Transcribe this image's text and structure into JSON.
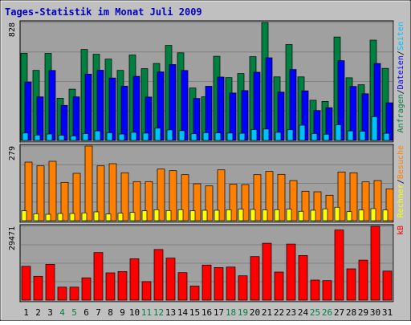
{
  "title": "Tages-Statistik im Monat Juli 2009",
  "colors": {
    "frame": "#c0c0c0",
    "panel": "#a0a0a0",
    "title": "#0000c0",
    "hits": "#008040",
    "files": "#0000ff",
    "pages": "#00c0ff",
    "visits": "#ff8000",
    "sites": "#ffff00",
    "kbytes": "#ff0000",
    "weekend": "#008040",
    "weekday": "#000000"
  },
  "chart_data": [
    {
      "type": "bar",
      "panel": "top",
      "ymax_label": "828",
      "legend": [
        "Anfragen",
        "Dateien",
        "Seiten"
      ],
      "legend_separator": "/",
      "categories": [
        "1",
        "2",
        "3",
        "4",
        "5",
        "6",
        "7",
        "8",
        "9",
        "10",
        "11",
        "12",
        "13",
        "14",
        "15",
        "16",
        "17",
        "18",
        "19",
        "20",
        "21",
        "22",
        "23",
        "24",
        "25",
        "26",
        "27",
        "28",
        "29",
        "30",
        "31"
      ],
      "weekend_days": [
        "4",
        "5",
        "11",
        "12",
        "18",
        "19",
        "25",
        "26"
      ],
      "ylim": [
        0,
        828
      ],
      "series": [
        {
          "name": "Anfragen",
          "color_key": "hits",
          "values": [
            612,
            492,
            611,
            296,
            360,
            639,
            605,
            571,
            492,
            600,
            504,
            540,
            667,
            615,
            368,
            306,
            591,
            441,
            470,
            588,
            828,
            446,
            673,
            446,
            282,
            274,
            726,
            440,
            391,
            704,
            506
          ]
        },
        {
          "name": "Dateien",
          "color_key": "files",
          "values": [
            410,
            306,
            491,
            246,
            306,
            465,
            493,
            438,
            381,
            450,
            305,
            481,
            533,
            491,
            295,
            380,
            445,
            333,
            350,
            479,
            580,
            339,
            498,
            348,
            210,
            230,
            560,
            379,
            328,
            540,
            264
          ]
        },
        {
          "name": "Seiten",
          "color_key": "pages",
          "values": [
            52,
            38,
            45,
            36,
            32,
            48,
            67,
            54,
            45,
            57,
            51,
            86,
            74,
            69,
            47,
            54,
            53,
            52,
            50,
            76,
            80,
            57,
            75,
            107,
            48,
            44,
            110,
            67,
            64,
            167,
            50
          ]
        }
      ]
    },
    {
      "type": "bar",
      "panel": "middle",
      "ymax_label": "279",
      "legend": [
        "Rechner",
        "Besuche"
      ],
      "legend_separator": "/",
      "categories": [
        "1",
        "2",
        "3",
        "4",
        "5",
        "6",
        "7",
        "8",
        "9",
        "10",
        "11",
        "12",
        "13",
        "14",
        "15",
        "16",
        "17",
        "18",
        "19",
        "20",
        "21",
        "22",
        "23",
        "24",
        "25",
        "26",
        "27",
        "28",
        "29",
        "30",
        "31"
      ],
      "ylim": [
        0,
        279
      ],
      "series": [
        {
          "name": "Besuche",
          "color_key": "visits",
          "values": [
            219,
            205,
            222,
            143,
            177,
            279,
            205,
            213,
            179,
            146,
            146,
            193,
            187,
            172,
            138,
            130,
            190,
            136,
            135,
            172,
            184,
            173,
            150,
            110,
            108,
            95,
            182,
            179,
            145,
            150,
            119
          ]
        },
        {
          "name": "Rechner",
          "color_key": "sites",
          "values": [
            37,
            26,
            24,
            27,
            27,
            29,
            33,
            25,
            28,
            31,
            37,
            41,
            38,
            41,
            37,
            39,
            39,
            41,
            43,
            42,
            40,
            41,
            43,
            35,
            39,
            44,
            50,
            34,
            40,
            45,
            40
          ]
        }
      ]
    },
    {
      "type": "bar",
      "panel": "bottom",
      "ymax_label": "29471",
      "legend": [
        "kB"
      ],
      "categories": [
        "1",
        "2",
        "3",
        "4",
        "5",
        "6",
        "7",
        "8",
        "9",
        "10",
        "11",
        "12",
        "13",
        "14",
        "15",
        "16",
        "17",
        "18",
        "19",
        "20",
        "21",
        "22",
        "23",
        "24",
        "25",
        "26",
        "27",
        "28",
        "29",
        "30",
        "31"
      ],
      "ylim": [
        0,
        29471
      ],
      "series": [
        {
          "name": "kB",
          "color_key": "kbytes",
          "values": [
            13500,
            9500,
            14300,
            5200,
            5200,
            8900,
            19000,
            10900,
            11400,
            16500,
            7400,
            20200,
            16800,
            11000,
            5600,
            14000,
            13000,
            13200,
            9700,
            17400,
            22700,
            11200,
            22400,
            17800,
            8000,
            7800,
            28000,
            12500,
            16000,
            29471,
            11600
          ]
        }
      ]
    }
  ]
}
